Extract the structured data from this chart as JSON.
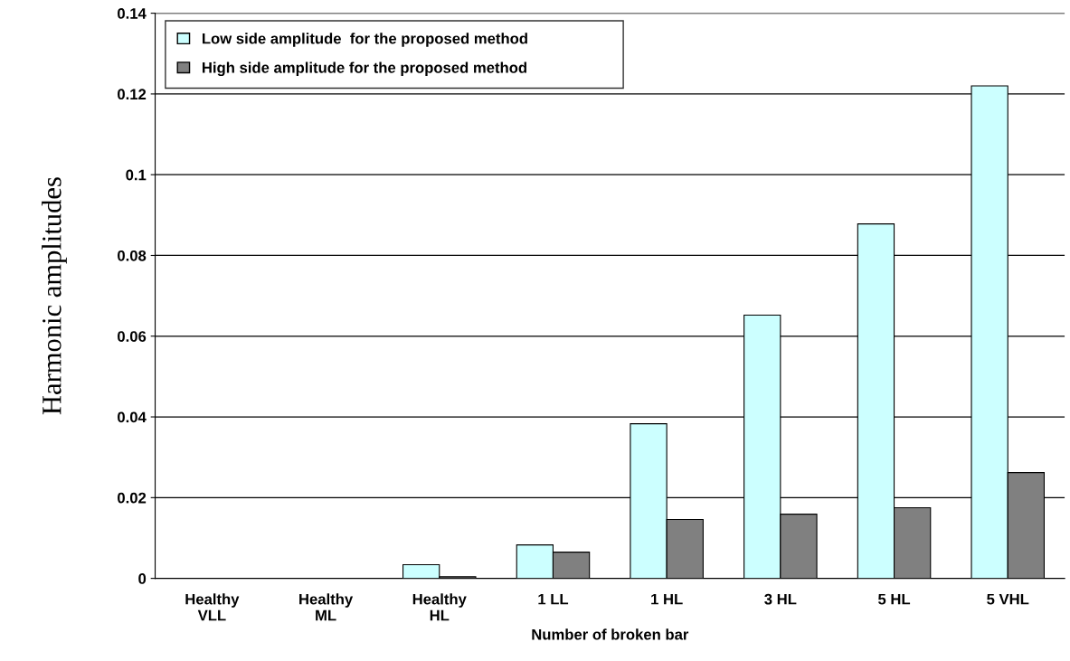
{
  "chart_data": {
    "type": "bar",
    "xlabel": "Number of broken bar",
    "ylabel": "Harmonic amplitudes",
    "categories": [
      "Healthy\nVLL",
      "Healthy\nML",
      "Healthy\nHL",
      "1 LL",
      "1 HL",
      "3 HL",
      "5 HL",
      "5 VHL"
    ],
    "series": [
      {
        "name": "Low side amplitude  for the proposed method",
        "color": "#ccffff",
        "values": [
          0,
          0,
          0.0034,
          0.0083,
          0.0383,
          0.0652,
          0.0878,
          0.122
        ]
      },
      {
        "name": "High side amplitude for the proposed method",
        "color": "#808080",
        "values": [
          0,
          0,
          0.0004,
          0.0065,
          0.0146,
          0.0159,
          0.0175,
          0.0262
        ]
      }
    ],
    "ylim": [
      0,
      0.14
    ],
    "yticks": [
      {
        "value": 0,
        "label": "0"
      },
      0.02,
      0.04,
      0.06,
      0.08,
      {
        "value": 0.1,
        "label": "0.1"
      },
      0.12,
      0.14
    ],
    "grid": "y",
    "legend": "top left"
  }
}
